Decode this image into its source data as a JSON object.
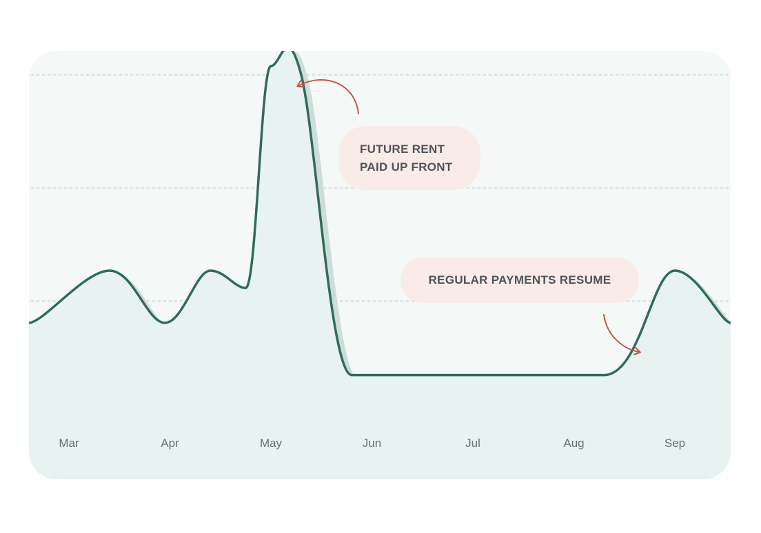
{
  "colors": {
    "line": "#2f6b5e",
    "area": "#e8f2f0",
    "area_shadow": "#cfdcd8",
    "card_bg": "#f4f8f7",
    "arrow": "#c0554a",
    "callout_bg": "#f8ebe8",
    "gridline": "#dfe5e3"
  },
  "chart_data": {
    "type": "area",
    "categories": [
      "Mar",
      "Apr",
      "May",
      "Jun",
      "Jul",
      "Aug",
      "Sep"
    ],
    "ylim": [
      0,
      100
    ],
    "grid": true,
    "gridlines": [
      40,
      66,
      92
    ],
    "points": [
      {
        "x": 0.0,
        "y": 35
      },
      {
        "x": 0.4,
        "y": 47
      },
      {
        "x": 0.95,
        "y": 35
      },
      {
        "x": 1.4,
        "y": 47
      },
      {
        "x": 1.75,
        "y": 43
      },
      {
        "x": 2.0,
        "y": 94
      },
      {
        "x": 2.3,
        "y": 92
      },
      {
        "x": 2.8,
        "y": 23
      },
      {
        "x": 3.5,
        "y": 23
      },
      {
        "x": 4.0,
        "y": 23
      },
      {
        "x": 5.3,
        "y": 23
      },
      {
        "x": 6.0,
        "y": 47
      },
      {
        "x": 6.5,
        "y": 35
      }
    ],
    "annotations": [
      {
        "lines": [
          "FUTURE RENT",
          "PAID UP FRONT"
        ]
      },
      {
        "lines": [
          "REGULAR PAYMENTS RESUME"
        ]
      }
    ]
  }
}
